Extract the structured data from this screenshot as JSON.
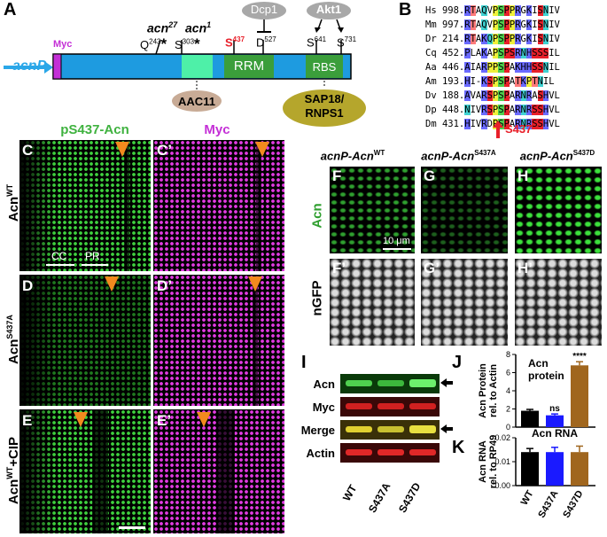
{
  "panelA": {
    "letter": "A",
    "promoter": "acnP",
    "myc": "Myc",
    "acn27_name": "acn",
    "acn27_sup": "27",
    "acn27_site": "Q",
    "acn27_pos": "243",
    "acn1_name": "acn",
    "acn1_sup": "1",
    "acn1_site": "S",
    "acn1_pos": "303",
    "star": "*",
    "s437_site": "S",
    "s437_pos": "437",
    "d527_site": "D",
    "d527_pos": "527",
    "s641_site": "S",
    "s641_pos": "641",
    "s731_site": "S",
    "s731_pos": "731",
    "dcp1": "Dcp1",
    "akt1": "Akt1",
    "rrm": "RRM",
    "rbs": "RBS",
    "aac11": "AAC11",
    "sap18_line1": "SAP18/",
    "sap18_line2": "RNPS1"
  },
  "panelB": {
    "letter": "B",
    "rows": [
      {
        "sp": "Hs",
        "num": "998.",
        "seq": "RTAQVPSPPRGKISNIV"
      },
      {
        "sp": "Mm",
        "num": "997.",
        "seq": "RTAQVPSPPRGKISNIV"
      },
      {
        "sp": "Dr",
        "num": "214.",
        "seq": "RTAKQPSPPRGKISNIV"
      },
      {
        "sp": "Cq",
        "num": "452.",
        "seq": "PLAKAPSPSRNHSSSIL"
      },
      {
        "sp": "Aa",
        "num": "446.",
        "seq": "AIARPPSPAKHHSSNIL"
      },
      {
        "sp": "Am",
        "num": "193.",
        "seq": "HI-KSPSPATKPTNIL"
      },
      {
        "sp": "Dv",
        "num": "188.",
        "seq": "AVARSPSPARNRASHVL"
      },
      {
        "sp": "Dp",
        "num": "448.",
        "seq": "NIVRSPSPARNRSSHVL"
      },
      {
        "sp": "Dm",
        "num": "431.",
        "seq": "HIVRDPSPARNRSSHVL"
      }
    ],
    "arrow_label": "S437",
    "arrow_color": "#e8202a"
  },
  "panelsCtoE": {
    "header_green": "pS437-Acn",
    "header_magenta": "Myc",
    "C": "C",
    "C2": "C’",
    "D": "D",
    "D2": "D’",
    "E": "E",
    "E2": "E’",
    "rowC": "Acn",
    "rowC_sup": "WT",
    "rowD": "Acn",
    "rowD_sup": "S437A",
    "rowE": "Acn",
    "rowE_sup": "WT",
    "rowE_suffix": "+CIP",
    "cc": "CC",
    "pr": "PR"
  },
  "panelsFtoH": {
    "col_F": "acnP-Acn",
    "col_F_sup": "WT",
    "col_G": "acnP-Acn",
    "col_G_sup": "S437A",
    "col_H": "acnP-Acn",
    "col_H_sup": "S437D",
    "F": "F",
    "G": "G",
    "H": "H",
    "F2": "F’",
    "G2": "G’",
    "H2": "H’",
    "row_acn": "Acn",
    "row_ngfp": "nGFP",
    "scale": "10 μm"
  },
  "panelI": {
    "letter": "I",
    "rows": [
      "Acn",
      "Myc",
      "Merge",
      "Actin"
    ],
    "lanes": [
      "WT",
      "S437A",
      "S437D"
    ]
  },
  "chart_data": [
    {
      "type": "bar",
      "panel": "J",
      "title": "Acn protein",
      "ylabel": "Acn Protein rel. to Actin",
      "categories": [
        "WT",
        "S437A",
        "S437D"
      ],
      "values": [
        1.8,
        1.3,
        6.8
      ],
      "errors": [
        0.15,
        0.15,
        0.4
      ],
      "colors": [
        "#000000",
        "#1a1aff",
        "#a0661e"
      ],
      "ylim": [
        0,
        8
      ],
      "yticks": [
        "0",
        "2",
        "4",
        "6",
        "8"
      ],
      "annotations": [
        "",
        "ns",
        "****"
      ]
    },
    {
      "type": "bar",
      "panel": "K",
      "title": "Acn RNA",
      "ylabel": "Acn RNA rel. to RP49",
      "categories": [
        "WT",
        "S437A",
        "S437D"
      ],
      "values": [
        0.014,
        0.014,
        0.014
      ],
      "errors": [
        0.0015,
        0.002,
        0.0025
      ],
      "colors": [
        "#000000",
        "#1a1aff",
        "#a0661e"
      ],
      "ylim": [
        0,
        0.02
      ],
      "yticks": [
        "0.00",
        "0.01",
        "0.02"
      ]
    }
  ]
}
